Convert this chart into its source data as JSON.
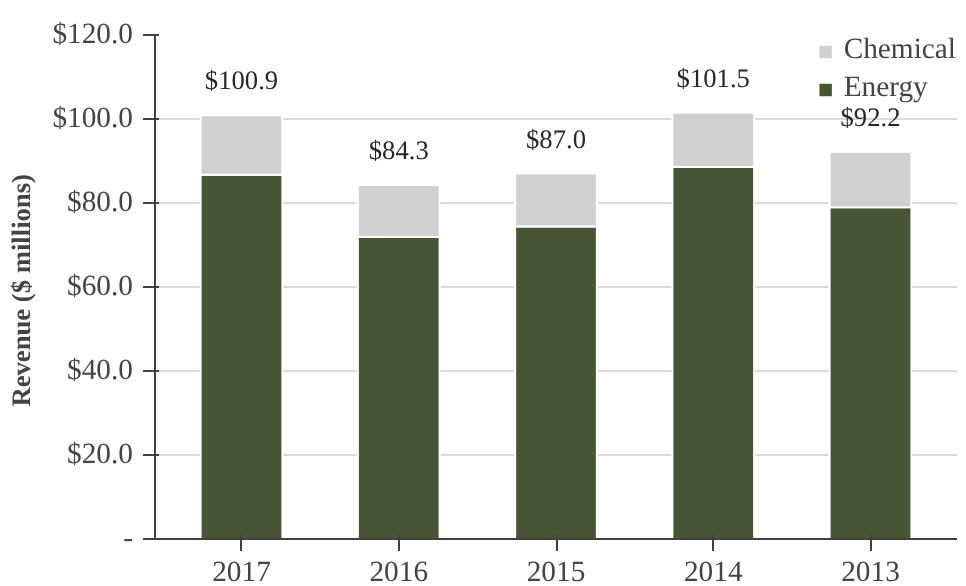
{
  "chart_data": {
    "type": "bar",
    "stacked": true,
    "ylabel": "Revenue  ($ millions)",
    "categories": [
      "2017",
      "2016",
      "2015",
      "2014",
      "2013"
    ],
    "series": [
      {
        "name": "Energy",
        "color": "#485535",
        "values": [
          86.7,
          71.9,
          74.4,
          88.6,
          79.0
        ]
      },
      {
        "name": "Chemical",
        "color": "#d0d0d0",
        "values": [
          14.2,
          12.4,
          12.6,
          12.9,
          13.2
        ]
      }
    ],
    "totals": [
      "$100.9",
      "$84.3",
      "$87.0",
      "$101.5",
      "$92.2"
    ],
    "ylim": [
      0,
      120
    ],
    "yticks": [
      {
        "value": 0,
        "label": "-"
      },
      {
        "value": 20,
        "label": "$20.0"
      },
      {
        "value": 40,
        "label": "$40.0"
      },
      {
        "value": 60,
        "label": "$60.0"
      },
      {
        "value": 80,
        "label": "$80.0"
      },
      {
        "value": 100,
        "label": "$100.0"
      },
      {
        "value": 120,
        "label": "$120.0"
      }
    ],
    "grid": "y",
    "legend": "top right"
  }
}
